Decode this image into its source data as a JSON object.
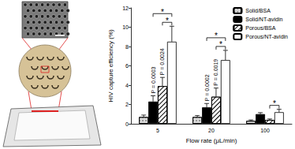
{
  "chart_data": {
    "type": "bar",
    "x_label": "Flow rate (μL/min)",
    "y_label": "HIV capture efficiency (%)",
    "categories": [
      "5",
      "20",
      "100"
    ],
    "series": [
      {
        "name": "Solid/BSA",
        "color": "#d9d9d9",
        "values": [
          0.7,
          0.7,
          0.3
        ],
        "errors": [
          0.2,
          0.15,
          0.1
        ]
      },
      {
        "name": "Solid/NT-avidin",
        "color": "#000000",
        "values": [
          2.3,
          1.7,
          1.0
        ],
        "errors": [
          0.6,
          0.4,
          0.15
        ]
      },
      {
        "name": "Porous/BSA",
        "color": "#ffffff",
        "values": [
          3.9,
          2.8,
          0.4
        ],
        "errors": [
          0.9,
          0.9,
          0.1
        ]
      },
      {
        "name": "Porous/NT-avidin",
        "color": "#ffffff",
        "values": [
          8.5,
          6.6,
          1.2
        ],
        "errors": [
          1.6,
          1.0,
          0.3
        ]
      }
    ],
    "ylim": [
      0,
      12
    ],
    "yticks": [
      0,
      2,
      4,
      6,
      8,
      10,
      12
    ],
    "grid": false,
    "legend": "top-right",
    "annotations": [
      {
        "category": "5",
        "from": "Solid/NT-avidin",
        "to": "Porous/NT-avidin",
        "label": "*",
        "p": "P = 0.0003"
      },
      {
        "category": "5",
        "from": "Porous/BSA",
        "to": "Porous/NT-avidin",
        "label": "*",
        "p": "P = 0.0024"
      },
      {
        "category": "20",
        "from": "Solid/NT-avidin",
        "to": "Porous/NT-avidin",
        "label": "*",
        "p": "P = 0.0002"
      },
      {
        "category": "20",
        "from": "Porous/BSA",
        "to": "Porous/NT-avidin",
        "label": "*",
        "p": "P = 0.0019"
      },
      {
        "category": "100",
        "from": "Porous/BSA",
        "to": "Porous/NT-avidin",
        "label": "*"
      }
    ]
  }
}
